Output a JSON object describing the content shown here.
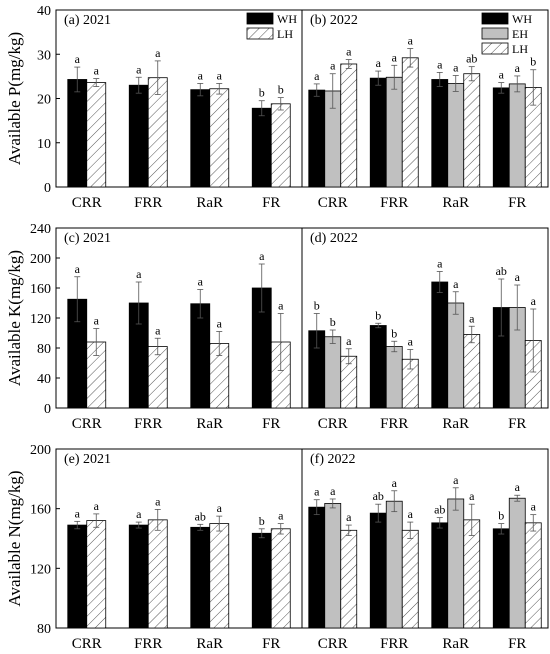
{
  "legend": {
    "wh": "WH",
    "eh": "EH",
    "lh": "LH"
  },
  "colors": {
    "wh": "#000000",
    "eh": "#c0c0c0",
    "lh_hatch": "#555555",
    "frame": "#000000"
  },
  "chart_data": [
    {
      "type": "bar",
      "row": 0,
      "ylabel": "Available P(mg/kg)",
      "ylim": [
        0,
        40
      ],
      "yticks": [
        0,
        10,
        20,
        30,
        40
      ],
      "grid": false,
      "panels": [
        {
          "label": "(a) 2021",
          "legend_placement": "top-right",
          "categories": [
            "CRR",
            "FRR",
            "RaR",
            "FR"
          ],
          "series": [
            {
              "name": "WH",
              "values": [
                24.3,
                23.0,
                22.0,
                17.8
              ],
              "errors": [
                2.8,
                1.8,
                1.4,
                1.7
              ],
              "letters": [
                "a",
                "a",
                "a",
                "b"
              ]
            },
            {
              "name": "LH",
              "values": [
                23.6,
                24.7,
                22.2,
                18.8
              ],
              "errors": [
                0.9,
                3.8,
                1.2,
                1.4
              ],
              "letters": [
                "a",
                "a",
                "a",
                "b"
              ]
            }
          ]
        },
        {
          "label": "(b) 2022",
          "legend_placement": "top-right",
          "categories": [
            "CRR",
            "FRR",
            "RaR",
            "FR"
          ],
          "series": [
            {
              "name": "WH",
              "values": [
                21.9,
                24.6,
                24.3,
                22.4
              ],
              "errors": [
                1.4,
                1.6,
                1.6,
                1.2
              ],
              "letters": [
                "a",
                "a",
                "a",
                "a"
              ]
            },
            {
              "name": "EH",
              "values": [
                21.7,
                24.8,
                23.4,
                23.3
              ],
              "errors": [
                3.9,
                2.7,
                1.8,
                1.8
              ],
              "letters": [
                "a",
                "a",
                "a",
                "a"
              ]
            },
            {
              "name": "LH",
              "values": [
                27.8,
                29.2,
                25.6,
                22.5
              ],
              "errors": [
                1.0,
                2.1,
                1.6,
                4.0
              ],
              "letters": [
                "a",
                "a",
                "ab",
                "b"
              ]
            }
          ]
        }
      ]
    },
    {
      "type": "bar",
      "row": 1,
      "ylabel": "Available K(mg/kg)",
      "ylim": [
        0,
        240
      ],
      "yticks": [
        0,
        40,
        80,
        120,
        160,
        200,
        240
      ],
      "grid": false,
      "panels": [
        {
          "label": "(c) 2021",
          "categories": [
            "CRR",
            "FRR",
            "RaR",
            "FR"
          ],
          "series": [
            {
              "name": "WH",
              "values": [
                145,
                140,
                139,
                160
              ],
              "errors": [
                30,
                28,
                19,
                32
              ],
              "letters": [
                "a",
                "a",
                "a",
                "a"
              ]
            },
            {
              "name": "LH",
              "values": [
                88,
                82,
                86,
                88
              ],
              "errors": [
                18,
                11,
                16,
                38
              ],
              "letters": [
                "a",
                "a",
                "a",
                "a"
              ]
            }
          ]
        },
        {
          "label": "(d) 2022",
          "categories": [
            "CRR",
            "FRR",
            "RaR",
            "FR"
          ],
          "series": [
            {
              "name": "WH",
              "values": [
                103,
                110,
                168,
                134
              ],
              "errors": [
                23,
                3,
                14,
                38
              ],
              "letters": [
                "b",
                "b",
                "a",
                "ab"
              ]
            },
            {
              "name": "EH",
              "values": [
                95,
                82,
                140,
                134
              ],
              "errors": [
                9,
                7,
                15,
                30
              ],
              "letters": [
                "b",
                "b",
                "a",
                "a"
              ]
            },
            {
              "name": "LH",
              "values": [
                69,
                65,
                98,
                90
              ],
              "errors": [
                10,
                13,
                11,
                42
              ],
              "letters": [
                "a",
                "a",
                "a",
                "a"
              ]
            }
          ]
        }
      ]
    },
    {
      "type": "bar",
      "row": 2,
      "ylabel": "Available N(mg/kg)",
      "ylim": [
        80,
        200
      ],
      "yticks": [
        80,
        120,
        160,
        200
      ],
      "grid": false,
      "panels": [
        {
          "label": "(e) 2021",
          "categories": [
            "CRR",
            "FRR",
            "RaR",
            "FR"
          ],
          "series": [
            {
              "name": "WH",
              "values": [
                149,
                149,
                147.5,
                143.5
              ],
              "errors": [
                2.5,
                2.0,
                2.0,
                3.0
              ],
              "letters": [
                "a",
                "a",
                "ab",
                "b"
              ]
            },
            {
              "name": "LH",
              "values": [
                152,
                152.5,
                150,
                146.5
              ],
              "errors": [
                4.5,
                7.0,
                5.0,
                3.5
              ],
              "letters": [
                "a",
                "a",
                "a",
                "a"
              ]
            }
          ]
        },
        {
          "label": "(f) 2022",
          "categories": [
            "CRR",
            "FRR",
            "RaR",
            "FR"
          ],
          "series": [
            {
              "name": "WH",
              "values": [
                161,
                157,
                150.5,
                146.5
              ],
              "errors": [
                5.0,
                6.0,
                3.5,
                3.5
              ],
              "letters": [
                "a",
                "ab",
                "ab",
                "b"
              ]
            },
            {
              "name": "EH",
              "values": [
                163.5,
                165,
                166.5,
                167
              ],
              "errors": [
                3.0,
                7.0,
                7.5,
                2.0
              ],
              "letters": [
                "a",
                "a",
                "a",
                "a"
              ]
            },
            {
              "name": "LH",
              "values": [
                145.5,
                145.5,
                152.5,
                150.5
              ],
              "errors": [
                3.5,
                5.5,
                10.5,
                5.5
              ],
              "letters": [
                "a",
                "a",
                "a",
                "a"
              ]
            }
          ]
        }
      ]
    }
  ]
}
